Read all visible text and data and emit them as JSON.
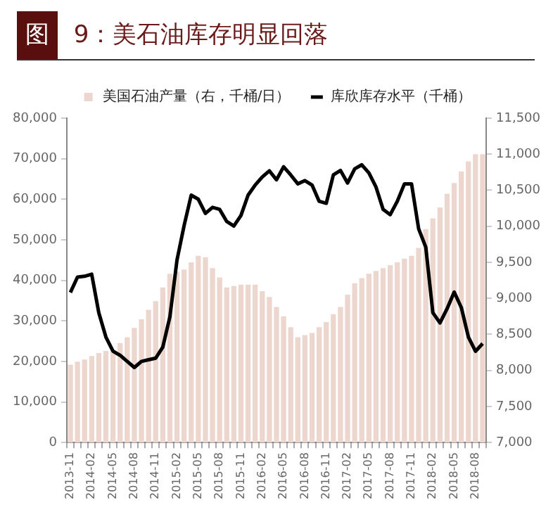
{
  "chart_data": {
    "type": "bar",
    "title": "图 9：美石油库存明显回落",
    "legend": "top",
    "categories": [
      "2013-11",
      null,
      null,
      "2014-02",
      null,
      null,
      "2014-05",
      null,
      null,
      "2014-08",
      null,
      null,
      "2014-11",
      null,
      null,
      "2015-02",
      null,
      null,
      "2015-05",
      null,
      null,
      "2015-08",
      null,
      null,
      "2015-11",
      null,
      null,
      "2016-02",
      null,
      null,
      "2016-05",
      null,
      null,
      "2016-08",
      null,
      null,
      "2016-11",
      null,
      null,
      "2017-02",
      null,
      null,
      "2017-05",
      null,
      null,
      "2017-08",
      null,
      null,
      "2017-11",
      null,
      null,
      "2018-02",
      null,
      null,
      "2018-05",
      null,
      null,
      "2018-08",
      null
    ],
    "series": [
      {
        "name": "美国石油产量（右，千桶/日）",
        "axis": "y2",
        "color": "#ecd6cd",
        "values": [
          8080,
          8120,
          8150,
          8200,
          8240,
          8270,
          8290,
          8380,
          8460,
          8590,
          8710,
          8840,
          8960,
          9150,
          9340,
          9370,
          9400,
          9500,
          9590,
          9570,
          9420,
          9290,
          9150,
          9170,
          9190,
          9190,
          9190,
          9100,
          9020,
          8880,
          8750,
          8600,
          8460,
          8490,
          8520,
          8600,
          8670,
          8780,
          8880,
          9050,
          9210,
          9280,
          9340,
          9380,
          9420,
          9460,
          9500,
          9550,
          9590,
          9700,
          9960,
          10110,
          10260,
          10450,
          10600,
          10760,
          10900,
          11000,
          11000
        ]
      },
      {
        "name": "库欣库存水平（千桶）",
        "type": "line",
        "color": "#000000",
        "values": [
          37000,
          40800,
          41000,
          41500,
          32000,
          26000,
          22500,
          21500,
          20000,
          18500,
          20000,
          20400,
          20800,
          23500,
          31000,
          45000,
          53500,
          61000,
          60000,
          56500,
          58000,
          57500,
          54500,
          53400,
          56000,
          61000,
          63500,
          65500,
          67000,
          64800,
          68000,
          66000,
          63800,
          64600,
          63500,
          59500,
          59000,
          66000,
          67100,
          64000,
          67500,
          68500,
          66500,
          63000,
          57500,
          56200,
          59500,
          63800,
          63800,
          52700,
          48200,
          32000,
          29500,
          33000,
          37100,
          33300,
          26000,
          22500,
          24400
        ]
      }
    ],
    "ylim": [
      0,
      80000
    ],
    "yticks": [
      {
        "value": 0,
        "label": "0"
      },
      {
        "value": 10000,
        "label": "10,000"
      },
      {
        "value": 20000,
        "label": "20,000"
      },
      {
        "value": 30000,
        "label": "30,000"
      },
      {
        "value": 40000,
        "label": "40,000"
      },
      {
        "value": 50000,
        "label": "50,000"
      },
      {
        "value": 60000,
        "label": "60,000"
      },
      {
        "value": 70000,
        "label": "70,000"
      },
      {
        "value": 80000,
        "label": "80,000"
      }
    ],
    "y2lim": [
      7000,
      11500
    ],
    "y2ticks": [
      {
        "value": 7000,
        "label": "7,000"
      },
      {
        "value": 7500,
        "label": "7,500"
      },
      {
        "value": 8000,
        "label": "8,000"
      },
      {
        "value": 8500,
        "label": "8,500"
      },
      {
        "value": 9000,
        "label": "9,000"
      },
      {
        "value": 9500,
        "label": "9,500"
      },
      {
        "value": 10000,
        "label": "10,000"
      },
      {
        "value": 10500,
        "label": "10,500"
      },
      {
        "value": 11000,
        "label": "11,000"
      },
      {
        "value": 11500,
        "label": "11,500"
      }
    ],
    "marker": "none",
    "line_style": "solid"
  }
}
